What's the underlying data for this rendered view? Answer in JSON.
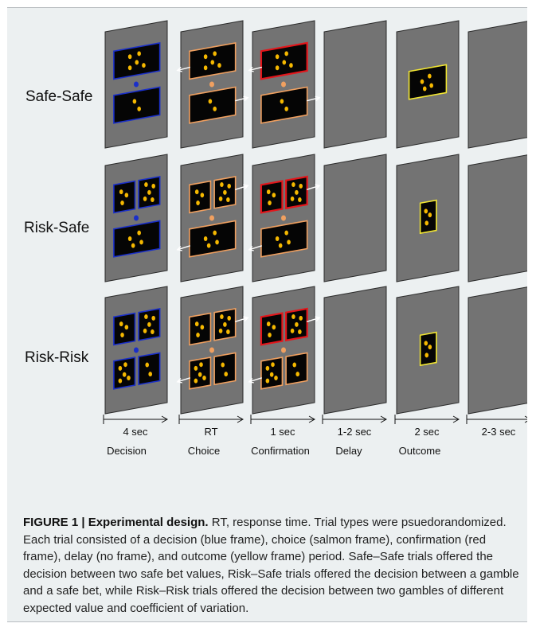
{
  "rows": [
    {
      "label": "Safe-Safe"
    },
    {
      "label": "Risk-Safe"
    },
    {
      "label": "Risk-Risk"
    }
  ],
  "timeline": [
    {
      "duration": "4 sec",
      "phase": "Decision"
    },
    {
      "duration": "RT",
      "phase": "Choice"
    },
    {
      "duration": "1 sec",
      "phase": "Confirmation"
    },
    {
      "duration": "1-2 sec",
      "phase": "Delay"
    },
    {
      "duration": "2 sec",
      "phase": "Outcome"
    },
    {
      "duration": "2-3 sec",
      "phase": "Outcome"
    }
  ],
  "colors": {
    "screen": "#737373",
    "screen_edge": "#2a2a2a",
    "decision_frame": "#1a2fc9",
    "choice_frame": "#f0a060",
    "confirmation_frame": "#e3161b",
    "outcome_frame": "#f2e632",
    "dot": "#f5b800",
    "panel": "#050505",
    "arrow": "#ffffff"
  },
  "caption": {
    "heading": "FIGURE 1 | Experimental design.",
    "body": " RT, response time. Trial types were psuedorandomized. Each trial consisted of a decision (blue frame), choice (salmon frame), confirmation (red frame), delay (no frame), and outcome (yellow frame) period. Safe–Safe trials offered the decision between two safe bet values, Risk–Safe trials offered the decision between a gamble and a safe bet, while Risk–Risk trials offered the decision between two gambles of different expected value and coefficient of variation."
  }
}
